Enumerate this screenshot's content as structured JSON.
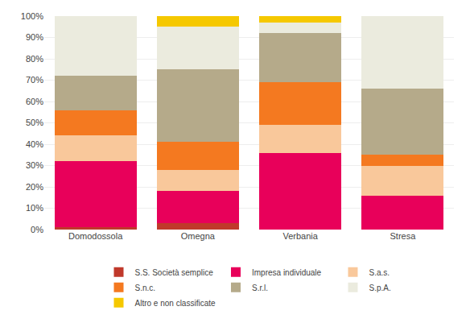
{
  "chart_data": {
    "type": "bar",
    "stacked": true,
    "categories": [
      "Domodossola",
      "Omegna",
      "Verbania",
      "Stresa"
    ],
    "series": [
      {
        "name": "S.S. Società semplice",
        "color": "#c0392b",
        "values": [
          0.01,
          0.03,
          0.0,
          0.0
        ]
      },
      {
        "name": "Impresa individuale",
        "color": "#e8005a",
        "values": [
          0.31,
          0.15,
          0.36,
          0.16
        ]
      },
      {
        "name": "S.a.s.",
        "color": "#f9c89b",
        "values": [
          0.12,
          0.1,
          0.13,
          0.14
        ]
      },
      {
        "name": "S.n.c.",
        "color": "#f47920",
        "values": [
          0.12,
          0.13,
          0.2,
          0.05
        ]
      },
      {
        "name": "S.r.l.",
        "color": "#b5aa8a",
        "values": [
          0.16,
          0.34,
          0.23,
          0.31
        ]
      },
      {
        "name": "S.p.A.",
        "color": "#ebebde",
        "values": [
          0.28,
          0.2,
          0.05,
          0.34
        ]
      },
      {
        "name": "Altro e non classificate",
        "color": "#f5c800",
        "values": [
          0.0,
          0.05,
          0.03,
          0.0
        ]
      }
    ],
    "ylim": [
      0,
      1.0
    ],
    "yticks": [
      {
        "value": 0.0,
        "label": "0%"
      },
      {
        "value": 0.1,
        "label": "10%"
      },
      {
        "value": 0.2,
        "label": "20%"
      },
      {
        "value": 0.3,
        "label": "30%"
      },
      {
        "value": 0.4,
        "label": "40%"
      },
      {
        "value": 0.5,
        "label": "50%"
      },
      {
        "value": 0.6,
        "label": "60%"
      },
      {
        "value": 0.7,
        "label": "70%"
      },
      {
        "value": 0.8,
        "label": "80%"
      },
      {
        "value": 0.9,
        "label": "90%"
      },
      {
        "value": 1.0,
        "label": "100%"
      }
    ],
    "grid": true,
    "legend": "bottom"
  }
}
